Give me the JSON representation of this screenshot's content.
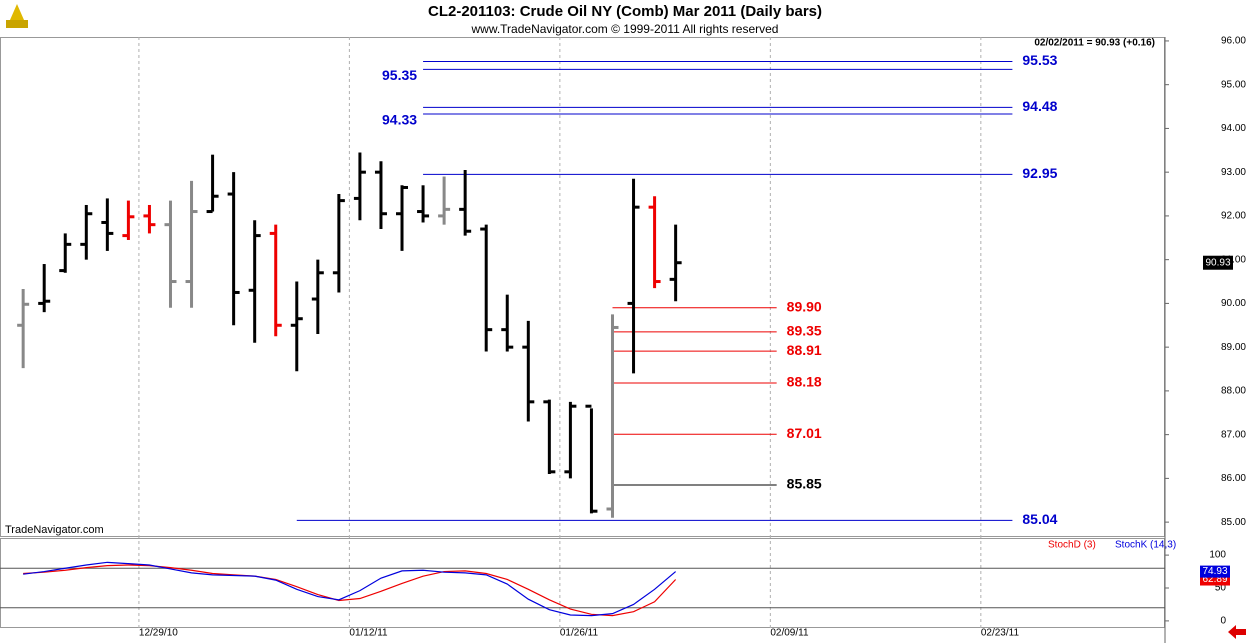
{
  "chart_data": [
    {
      "type": "ohlc",
      "title": "CL2-201103:  Crude Oil NY (Comb) Mar 2011  (Daily bars)",
      "subtitle": "www.TradeNavigator.com © 1999-2011 All rights reserved",
      "status": "02/02/2011 = 90.93 (+0.16)",
      "watermark": "TradeNavigator.com",
      "x": [
        0,
        1,
        2,
        3,
        4,
        5,
        6,
        7,
        8,
        9,
        10,
        11,
        12,
        13,
        14,
        15,
        16,
        17,
        18,
        19,
        20,
        21,
        22,
        23,
        24,
        25,
        26,
        27,
        28,
        29,
        30,
        31
      ],
      "open": [
        89.5,
        90.0,
        90.75,
        91.35,
        91.85,
        91.55,
        92.0,
        91.8,
        90.5,
        92.1,
        92.5,
        90.3,
        91.6,
        89.5,
        90.1,
        90.7,
        92.4,
        93.0,
        92.05,
        92.1,
        92.0,
        92.15,
        91.7,
        89.4,
        89.0,
        87.75,
        86.15,
        87.65,
        85.3,
        90.0,
        92.2,
        90.55
      ],
      "high": [
        90.33,
        90.9,
        91.6,
        92.25,
        92.4,
        92.35,
        92.25,
        92.35,
        92.8,
        93.4,
        93.0,
        91.9,
        91.8,
        90.5,
        91.0,
        92.5,
        93.45,
        93.25,
        92.7,
        92.7,
        92.9,
        93.05,
        91.8,
        90.2,
        89.6,
        87.8,
        87.75,
        87.6,
        89.75,
        92.85,
        92.45,
        91.8
      ],
      "low": [
        88.52,
        89.8,
        90.7,
        91.0,
        91.2,
        91.45,
        91.6,
        89.9,
        89.9,
        92.1,
        89.5,
        89.1,
        89.25,
        88.45,
        89.3,
        90.25,
        91.9,
        91.7,
        91.2,
        91.85,
        91.8,
        91.55,
        88.9,
        88.9,
        87.3,
        86.1,
        86.0,
        85.2,
        85.1,
        88.4,
        90.35,
        90.05
      ],
      "close": [
        89.98,
        90.05,
        91.35,
        92.05,
        91.6,
        91.98,
        91.8,
        90.5,
        92.1,
        92.45,
        90.25,
        91.55,
        89.5,
        89.65,
        90.7,
        92.35,
        93.0,
        92.05,
        92.65,
        92.0,
        92.15,
        91.65,
        89.4,
        89.0,
        87.75,
        86.15,
        87.65,
        85.25,
        89.45,
        92.2,
        90.5,
        90.93
      ],
      "colors": [
        "#888888",
        "#000000",
        "#000000",
        "#000000",
        "#000000",
        "#ee0000",
        "#ee0000",
        "#888888",
        "#888888",
        "#000000",
        "#000000",
        "#000000",
        "#ee0000",
        "#000000",
        "#000000",
        "#000000",
        "#000000",
        "#000000",
        "#000000",
        "#000000",
        "#888888",
        "#000000",
        "#000000",
        "#000000",
        "#000000",
        "#000000",
        "#000000",
        "#000000",
        "#888888",
        "#000000",
        "#ee0000",
        "#000000"
      ],
      "last": 90.93,
      "xlim": [
        -1.1,
        54.25
      ],
      "ylim": [
        84.66,
        96.09
      ],
      "yticks": [
        {
          "value": 85,
          "label": "85.00"
        },
        {
          "value": 86,
          "label": "86.00"
        },
        {
          "value": 87,
          "label": "87.00"
        },
        {
          "value": 88,
          "label": "88.00"
        },
        {
          "value": 89,
          "label": "89.00"
        },
        {
          "value": 90,
          "label": "90.00"
        },
        {
          "value": 91,
          "label": "91.00"
        },
        {
          "value": 92,
          "label": "92.00"
        },
        {
          "value": 93,
          "label": "93.00"
        },
        {
          "value": 94,
          "label": "94.00"
        },
        {
          "value": 95,
          "label": "95.00"
        },
        {
          "value": 96,
          "label": "96.00"
        }
      ],
      "levels": [
        {
          "value": 95.53,
          "label": "95.53",
          "color": "#0000cc",
          "x": [
            19,
            47
          ],
          "label_side": "right"
        },
        {
          "value": 95.35,
          "label": "95.35",
          "color": "#0000cc",
          "x": [
            19,
            47
          ],
          "label_side": "left"
        },
        {
          "value": 94.48,
          "label": "94.48",
          "color": "#0000cc",
          "x": [
            19,
            47
          ],
          "label_side": "right"
        },
        {
          "value": 94.33,
          "label": "94.33",
          "color": "#0000cc",
          "x": [
            19,
            47
          ],
          "label_side": "left"
        },
        {
          "value": 92.95,
          "label": "92.95",
          "color": "#0000cc",
          "x": [
            19,
            47
          ],
          "label_side": "right"
        },
        {
          "value": 85.04,
          "label": "85.04",
          "color": "#0000cc",
          "x": [
            13,
            47
          ],
          "label_side": "right"
        },
        {
          "value": 89.9,
          "label": "89.90",
          "color": "#ee0000",
          "x": [
            28,
            35.8
          ],
          "label_side": "right"
        },
        {
          "value": 89.35,
          "label": "89.35",
          "color": "#ee0000",
          "x": [
            28,
            35.8
          ],
          "label_side": "right"
        },
        {
          "value": 88.91,
          "label": "88.91",
          "color": "#ee0000",
          "x": [
            28,
            35.8
          ],
          "label_side": "right"
        },
        {
          "value": 88.18,
          "label": "88.18",
          "color": "#ee0000",
          "x": [
            28,
            35.8
          ],
          "label_side": "right"
        },
        {
          "value": 87.01,
          "label": "87.01",
          "color": "#ee0000",
          "x": [
            28,
            35.8
          ],
          "label_side": "right"
        },
        {
          "value": 85.85,
          "label": "85.85",
          "color": "#000000",
          "x": [
            28,
            35.8
          ],
          "label_side": "right"
        }
      ]
    },
    {
      "type": "line",
      "x": [
        0,
        1,
        2,
        3,
        4,
        5,
        6,
        7,
        8,
        9,
        10,
        11,
        12,
        13,
        14,
        15,
        16,
        17,
        18,
        19,
        20,
        21,
        22,
        23,
        24,
        25,
        26,
        27,
        28,
        29,
        30,
        31
      ],
      "series": [
        {
          "name": "StochD (3)",
          "color": "#ee0000",
          "values": [
            72,
            74,
            77,
            81,
            84,
            85,
            84,
            81,
            77,
            72,
            70,
            68,
            63,
            52,
            40,
            31,
            34,
            45,
            57,
            68,
            75,
            76,
            72,
            63,
            48,
            32,
            18,
            10,
            8,
            14,
            29,
            62.89
          ]
        },
        {
          "name": "StochK (14,3)",
          "color": "#0000dd",
          "values": [
            71,
            75,
            80,
            85,
            89,
            87,
            85,
            79,
            73,
            70,
            69,
            68,
            62,
            48,
            37,
            32,
            46,
            65,
            76,
            77,
            74,
            73,
            70,
            56,
            33,
            17,
            9,
            8,
            11,
            25,
            48,
            74.93
          ]
        }
      ],
      "hlines": [
        80,
        20
      ],
      "xlim": [
        -1.1,
        54.25
      ],
      "ylim": [
        -10.8,
        126
      ],
      "yticks": [
        0,
        50,
        100
      ],
      "xticks": [
        {
          "value": 5.5,
          "label": "12/29/10"
        },
        {
          "value": 15.5,
          "label": "01/12/11"
        },
        {
          "value": 25.5,
          "label": "01/26/11"
        },
        {
          "value": 35.5,
          "label": "02/09/11"
        },
        {
          "value": 45.5,
          "label": "02/23/11"
        }
      ],
      "grid": true
    }
  ]
}
